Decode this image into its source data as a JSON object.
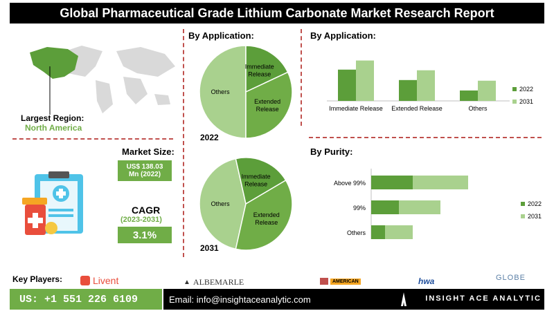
{
  "header": {
    "title": "Global Pharmaceutical Grade Lithium Carbonate Market Research Report"
  },
  "region": {
    "label": "Largest Region:",
    "value": "North America"
  },
  "market_size": {
    "label": "Market Size:",
    "value_line1": "US$ 138.03",
    "value_line2": "Mn (2022)"
  },
  "cagr": {
    "label": "CAGR",
    "period": "(2023-2031)",
    "value": "3.1%"
  },
  "application_pies_title": "By Application:",
  "application_bar_title": "By Application:",
  "purity_title": "By Purity:",
  "key_players": {
    "label": "Key Players:",
    "items": [
      "Livent",
      "ALBEMARLE",
      "AMERICAN",
      "hwa",
      "GLOBE"
    ]
  },
  "contact": {
    "phone": "US: +1 551 226 6109",
    "email": "Email: info@insightaceanalytic.com",
    "brand": "INSIGHT ACE ANALYTIC"
  },
  "colors": {
    "dark_green": "#5c9e3a",
    "light_green": "#a9d18e",
    "mid_green": "#70ad47",
    "divider": "#c0504d"
  },
  "chart_data": [
    {
      "type": "pie",
      "title": "2022",
      "labels": [
        "Others",
        "Immediate Release",
        "Extended Release"
      ],
      "values": [
        50,
        18,
        32
      ]
    },
    {
      "type": "pie",
      "title": "2031",
      "labels": [
        "Others",
        "Immediate Release",
        "Extended Release"
      ],
      "values": [
        43,
        20,
        37
      ]
    },
    {
      "type": "bar",
      "title": "By Application:",
      "categories": [
        "Immediate Release",
        "Extended Release",
        "Others"
      ],
      "series": [
        {
          "name": "2022",
          "values": [
            48,
            32,
            16
          ]
        },
        {
          "name": "2031",
          "values": [
            62,
            47,
            31
          ]
        }
      ],
      "ylim": [
        0,
        70
      ]
    },
    {
      "type": "bar",
      "orientation": "horizontal",
      "title": "By Purity:",
      "categories": [
        "Above 99%",
        "99%",
        "Others"
      ],
      "series": [
        {
          "name": "2022",
          "values": [
            30,
            20,
            10
          ]
        },
        {
          "name": "2031",
          "values": [
            40,
            30,
            20
          ]
        }
      ],
      "xlim": [
        0,
        100
      ]
    }
  ]
}
